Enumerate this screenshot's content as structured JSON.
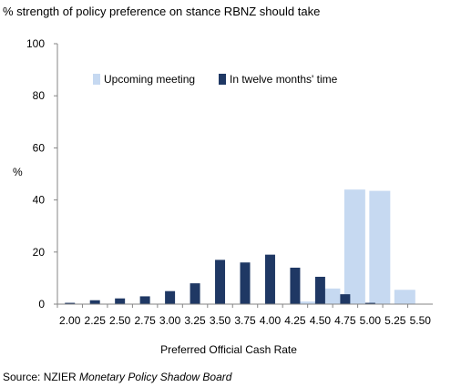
{
  "chart_data": {
    "type": "bar",
    "title": "% strength of policy preference on stance RBNZ should take",
    "xlabel": "Preferred  Official Cash Rate",
    "ylabel": "%",
    "ylim": [
      0,
      100
    ],
    "yticks": [
      0,
      20,
      40,
      60,
      80,
      100
    ],
    "categories": [
      "2.00",
      "2.25",
      "2.50",
      "2.75",
      "3.00",
      "3.25",
      "3.50",
      "3.75",
      "4.00",
      "4.25",
      "4.50",
      "4.75",
      "5.00",
      "5.25",
      "5.50"
    ],
    "series": [
      {
        "name": "Upcoming meeting",
        "color": "#c6d9f1",
        "values": [
          0,
          0,
          0,
          0,
          0,
          0,
          0,
          0,
          0,
          1,
          6,
          44,
          43.5,
          5.5,
          0
        ]
      },
      {
        "name": "In twelve months' time",
        "color": "#1f3864",
        "values": [
          0.5,
          1.5,
          2.2,
          3,
          5,
          8,
          17,
          16,
          19,
          14,
          10.5,
          3.8,
          0.5,
          0,
          0
        ]
      }
    ],
    "legend": "top-right",
    "grid": false
  },
  "source": {
    "prefix": "Source: NZIER ",
    "italic": "Monetary Policy Shadow Board"
  }
}
